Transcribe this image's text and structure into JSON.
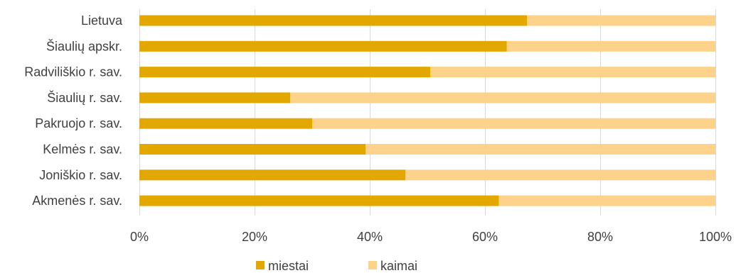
{
  "chart_data": {
    "type": "bar",
    "orientation": "horizontal",
    "stacked": "percent",
    "categories": [
      "Lietuva",
      "Šiaulių apskr.",
      "Radviliškio r. sav.",
      "Šiaulių r. sav.",
      "Pakruojo r. sav.",
      "Kelmės r. sav.",
      "Joniškio r. sav.",
      "Akmenės r. sav."
    ],
    "series": [
      {
        "name": "miestai",
        "color": "#e2a800",
        "values": [
          67.3,
          63.8,
          50.5,
          26.2,
          30.0,
          39.3,
          46.2,
          62.4
        ]
      },
      {
        "name": "kaimai",
        "color": "#fdd28a",
        "values": [
          32.7,
          36.2,
          49.5,
          73.8,
          70.0,
          60.7,
          53.8,
          37.6
        ]
      }
    ],
    "xlim": [
      0,
      100
    ],
    "x_ticks": [
      "0%",
      "20%",
      "40%",
      "60%",
      "80%",
      "100%"
    ],
    "grid": "vertical",
    "legend_position": "bottom"
  }
}
